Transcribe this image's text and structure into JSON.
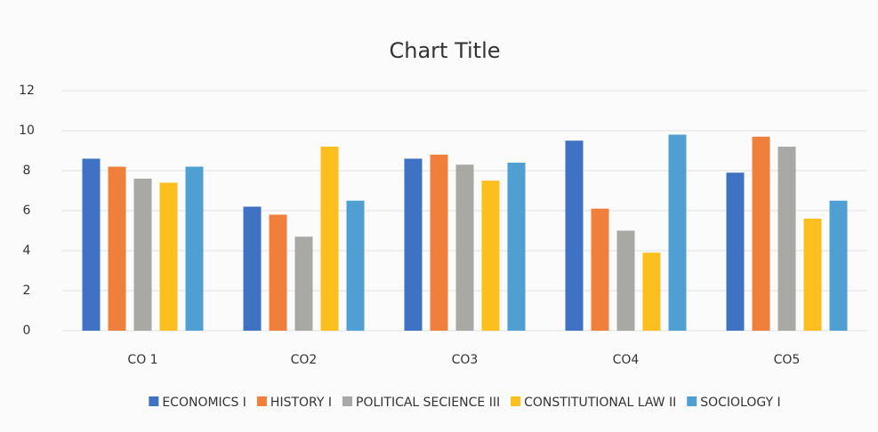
{
  "chart_data": {
    "type": "bar",
    "title": "Chart Title",
    "categories": [
      "CO 1",
      "CO2",
      "CO3",
      "CO4",
      "CO5"
    ],
    "series": [
      {
        "name": "ECONOMICS I",
        "color": "#3f72c2",
        "values": [
          8.6,
          6.2,
          8.6,
          9.5,
          7.9
        ]
      },
      {
        "name": "HISTORY I",
        "color": "#f07f3c",
        "values": [
          8.2,
          5.8,
          8.8,
          6.1,
          9.7
        ]
      },
      {
        "name": "POLITICAL SECIENCE III",
        "color": "#a8a8a4",
        "values": [
          7.6,
          4.7,
          8.3,
          5.0,
          9.2
        ]
      },
      {
        "name": "CONSTITUTIONAL LAW II",
        "color": "#fdbf1e",
        "values": [
          7.4,
          9.2,
          7.5,
          3.9,
          5.6
        ]
      },
      {
        "name": "SOCIOLOGY I",
        "color": "#4f9fd3",
        "values": [
          8.2,
          6.5,
          8.4,
          9.8,
          6.5
        ]
      }
    ],
    "ylim": [
      0,
      12
    ],
    "yticks": [
      0,
      2,
      4,
      6,
      8,
      10,
      12
    ],
    "grid": true,
    "legend": "bottom"
  }
}
